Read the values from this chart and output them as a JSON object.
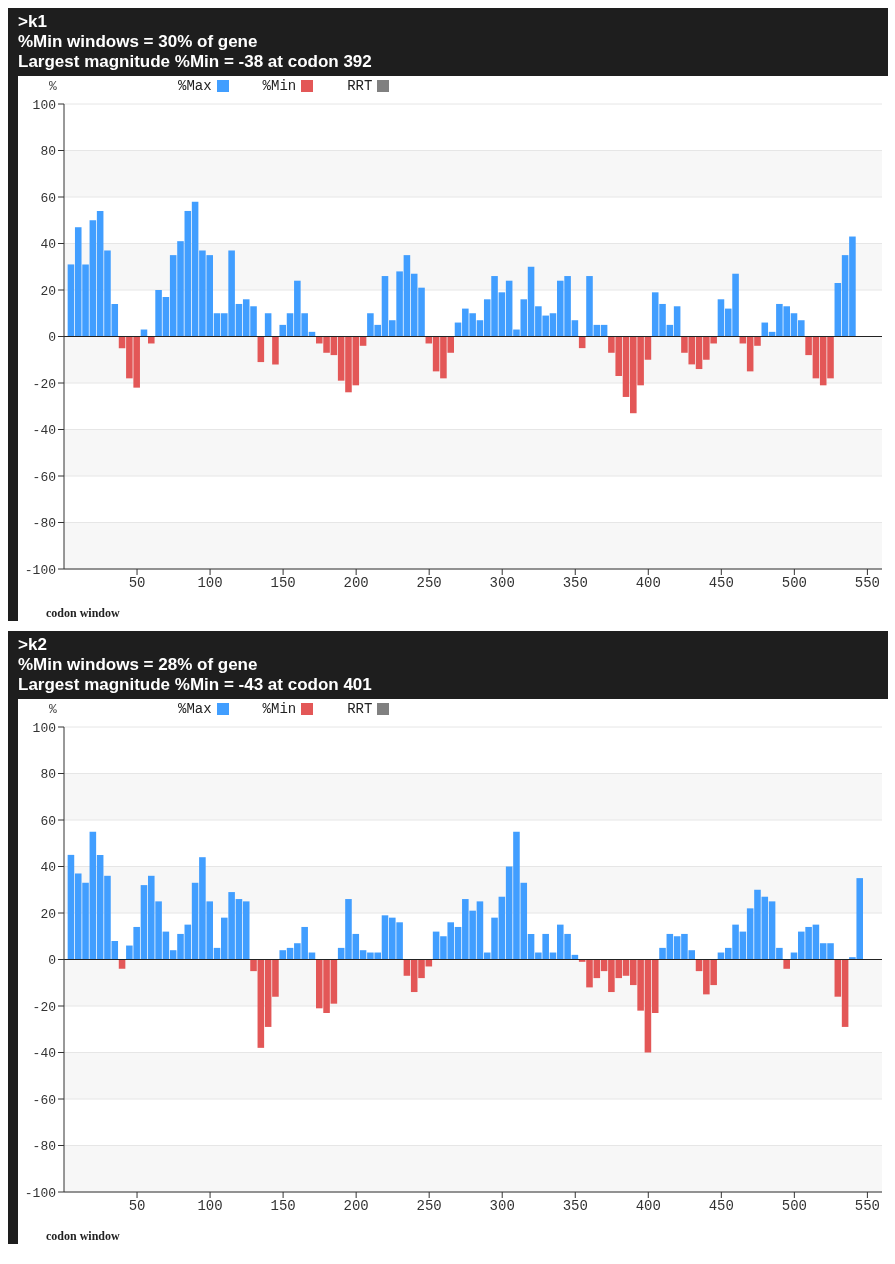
{
  "chart_data": [
    {
      "type": "bar",
      "title": ">k1",
      "subtitle": "%Min windows = 30% of gene",
      "annotations": [
        "Largest magnitude %Min = -38 at codon 392"
      ],
      "xlabel": "codon window",
      "ylabel": "%",
      "x": [
        5,
        10,
        15,
        20,
        25,
        30,
        35,
        40,
        45,
        50,
        55,
        60,
        65,
        70,
        75,
        80,
        85,
        90,
        95,
        100,
        105,
        110,
        115,
        120,
        125,
        130,
        135,
        140,
        145,
        150,
        155,
        160,
        165,
        170,
        175,
        180,
        185,
        190,
        195,
        200,
        205,
        210,
        215,
        220,
        225,
        230,
        235,
        240,
        245,
        250,
        255,
        260,
        265,
        270,
        275,
        280,
        285,
        290,
        295,
        300,
        305,
        310,
        315,
        320,
        325,
        330,
        335,
        340,
        345,
        350,
        355,
        360,
        365,
        370,
        375,
        380,
        385,
        390,
        395,
        400,
        405,
        410,
        415,
        420,
        425,
        430,
        435,
        440,
        445,
        450,
        455,
        460,
        465,
        470,
        475,
        480,
        485,
        490,
        495,
        500,
        505,
        510,
        515,
        520,
        525,
        530,
        535,
        540
      ],
      "series": [
        {
          "name": "%Max",
          "color": "#419eff",
          "values": [
            31,
            47,
            31,
            50,
            54,
            37,
            14,
            null,
            null,
            null,
            3,
            null,
            20,
            17,
            35,
            41,
            54,
            58,
            37,
            35,
            10,
            10,
            37,
            14,
            16,
            13,
            null,
            10,
            null,
            5,
            10,
            24,
            10,
            2,
            null,
            null,
            null,
            null,
            null,
            null,
            null,
            10,
            5,
            26,
            7,
            28,
            35,
            27,
            21,
            null,
            null,
            null,
            null,
            6,
            12,
            10,
            7,
            16,
            26,
            19,
            24,
            3,
            16,
            30,
            13,
            9,
            10,
            24,
            26,
            7,
            null,
            26,
            5,
            5,
            null,
            null,
            null,
            null,
            null,
            null,
            19,
            14,
            5,
            13,
            null,
            null,
            null,
            null,
            null,
            16,
            12,
            27,
            null,
            null,
            null,
            6,
            2,
            14,
            13,
            10,
            7,
            null,
            null,
            null,
            null,
            23,
            35,
            43
          ]
        },
        {
          "name": "%Min",
          "color": "#e35757",
          "values": [
            null,
            null,
            null,
            null,
            null,
            null,
            null,
            -5,
            -18,
            -22,
            null,
            -3,
            null,
            null,
            null,
            null,
            null,
            null,
            null,
            null,
            null,
            null,
            null,
            null,
            null,
            null,
            -11,
            null,
            -12,
            null,
            null,
            null,
            null,
            null,
            -3,
            -7,
            -8,
            -19,
            -24,
            -21,
            -4,
            null,
            null,
            null,
            null,
            null,
            null,
            null,
            null,
            -3,
            -15,
            -18,
            -7,
            null,
            null,
            null,
            null,
            null,
            null,
            null,
            null,
            null,
            null,
            null,
            null,
            null,
            null,
            null,
            null,
            null,
            -5,
            null,
            null,
            null,
            -7,
            -17,
            -26,
            -33,
            -21,
            -10,
            null,
            null,
            null,
            null,
            -7,
            -12,
            -14,
            -10,
            -3,
            null,
            null,
            null,
            -3,
            -15,
            -4,
            null,
            null,
            null,
            null,
            null,
            null,
            -8,
            -18,
            -21,
            -18,
            null,
            null,
            null
          ]
        },
        {
          "name": "RRT",
          "color": "#808080",
          "values": [
            null,
            null,
            null,
            null,
            null,
            null,
            null,
            null,
            null,
            null,
            null,
            null,
            null,
            null,
            null,
            null,
            null,
            null,
            null,
            null,
            null,
            null,
            null,
            null,
            null,
            null,
            null,
            null,
            null,
            null,
            null,
            null,
            null,
            null,
            null,
            null,
            null,
            null,
            null,
            null,
            null,
            null,
            null,
            null,
            null,
            null,
            null,
            null,
            null,
            null,
            null,
            null,
            null,
            null,
            null,
            null,
            null,
            null,
            null,
            null,
            null,
            null,
            null,
            null,
            null,
            null,
            null,
            null,
            null,
            null,
            null,
            null,
            null,
            null,
            null,
            null,
            null,
            null,
            null,
            null,
            null,
            null,
            null,
            null,
            null,
            null,
            null,
            null,
            null,
            null,
            null,
            null,
            null,
            null,
            null,
            null,
            null,
            null,
            null,
            null,
            null,
            null,
            null,
            null,
            null,
            null,
            null,
            null
          ]
        }
      ],
      "xlim": [
        0,
        560
      ],
      "xticks": [
        50,
        100,
        150,
        200,
        250,
        300,
        350,
        400,
        450,
        500,
        550
      ],
      "ylim": [
        -100,
        100
      ],
      "yticks": [
        -100,
        -80,
        -60,
        -40,
        -20,
        0,
        20,
        40,
        60,
        80,
        100
      ],
      "grid": "y",
      "legend": "top left",
      "ref_lines": [
        {
          "axis": "y",
          "value": 0,
          "color": "#222222"
        }
      ]
    },
    {
      "type": "bar",
      "title": ">k2",
      "subtitle": "%Min windows = 28% of gene",
      "annotations": [
        "Largest magnitude %Min = -43 at codon 401"
      ],
      "xlabel": "codon window",
      "ylabel": "%",
      "x": [
        5,
        10,
        15,
        20,
        25,
        30,
        35,
        40,
        45,
        50,
        55,
        60,
        65,
        70,
        75,
        80,
        85,
        90,
        95,
        100,
        105,
        110,
        115,
        120,
        125,
        130,
        135,
        140,
        145,
        150,
        155,
        160,
        165,
        170,
        175,
        180,
        185,
        190,
        195,
        200,
        205,
        210,
        215,
        220,
        225,
        230,
        235,
        240,
        245,
        250,
        255,
        260,
        265,
        270,
        275,
        280,
        285,
        290,
        295,
        300,
        305,
        310,
        315,
        320,
        325,
        330,
        335,
        340,
        345,
        350,
        355,
        360,
        365,
        370,
        375,
        380,
        385,
        390,
        395,
        400,
        405,
        410,
        415,
        420,
        425,
        430,
        435,
        440,
        445,
        450,
        455,
        460,
        465,
        470,
        475,
        480,
        485,
        490,
        495,
        500,
        505,
        510,
        515,
        520,
        525,
        530,
        535,
        540,
        545
      ],
      "series": [
        {
          "name": "%Max",
          "color": "#419eff",
          "values": [
            45,
            37,
            33,
            55,
            45,
            36,
            8,
            null,
            6,
            14,
            32,
            36,
            25,
            12,
            4,
            11,
            15,
            33,
            44,
            25,
            5,
            18,
            29,
            26,
            25,
            null,
            null,
            null,
            null,
            4,
            5,
            7,
            14,
            3,
            null,
            null,
            null,
            5,
            26,
            11,
            4,
            3,
            3,
            19,
            18,
            16,
            null,
            null,
            null,
            null,
            12,
            10,
            16,
            14,
            26,
            21,
            25,
            3,
            18,
            27,
            40,
            55,
            33,
            11,
            3,
            11,
            3,
            15,
            11,
            2,
            null,
            null,
            null,
            null,
            null,
            null,
            null,
            null,
            null,
            null,
            null,
            5,
            11,
            10,
            11,
            4,
            null,
            null,
            null,
            3,
            5,
            15,
            12,
            22,
            30,
            27,
            25,
            5,
            null,
            3,
            12,
            14,
            15,
            7,
            7,
            null,
            null,
            1,
            35
          ]
        },
        {
          "name": "%Min",
          "color": "#e35757",
          "values": [
            null,
            null,
            null,
            null,
            null,
            null,
            null,
            -4,
            null,
            null,
            null,
            null,
            null,
            null,
            null,
            null,
            null,
            null,
            null,
            null,
            null,
            null,
            null,
            null,
            null,
            -5,
            -38,
            -29,
            -16,
            null,
            null,
            null,
            null,
            null,
            -21,
            -23,
            -19,
            null,
            null,
            null,
            null,
            null,
            null,
            null,
            null,
            null,
            -7,
            -14,
            -8,
            -3,
            null,
            null,
            null,
            null,
            null,
            null,
            null,
            null,
            null,
            null,
            null,
            null,
            null,
            null,
            null,
            null,
            null,
            null,
            null,
            null,
            -1,
            -12,
            -8,
            -5,
            -14,
            -8,
            -7,
            -11,
            -22,
            -40,
            -23,
            null,
            null,
            null,
            null,
            null,
            -5,
            -15,
            -11,
            null,
            null,
            null,
            null,
            null,
            null,
            null,
            null,
            null,
            -4,
            null,
            null,
            null,
            null,
            null,
            null,
            -16,
            -29,
            null,
            null
          ]
        },
        {
          "name": "RRT",
          "color": "#808080",
          "values": [
            null,
            null,
            null,
            null,
            null,
            null,
            null,
            null,
            null,
            null,
            null,
            null,
            null,
            null,
            null,
            null,
            null,
            null,
            null,
            null,
            null,
            null,
            null,
            null,
            null,
            null,
            null,
            null,
            null,
            null,
            null,
            null,
            null,
            null,
            null,
            null,
            null,
            null,
            null,
            null,
            null,
            null,
            null,
            null,
            null,
            null,
            null,
            null,
            null,
            null,
            null,
            null,
            null,
            null,
            null,
            null,
            null,
            null,
            null,
            null,
            null,
            null,
            null,
            null,
            null,
            null,
            null,
            null,
            null,
            null,
            null,
            null,
            null,
            null,
            null,
            null,
            null,
            null,
            null,
            null,
            null,
            null,
            null,
            null,
            null,
            null,
            null,
            null,
            null,
            null,
            null,
            null,
            null,
            null,
            null,
            null,
            null,
            null,
            null,
            null,
            null,
            null,
            null,
            null,
            null,
            null,
            null,
            null,
            null
          ]
        }
      ],
      "xlim": [
        0,
        560
      ],
      "xticks": [
        50,
        100,
        150,
        200,
        250,
        300,
        350,
        400,
        450,
        500,
        550
      ],
      "ylim": [
        -100,
        100
      ],
      "yticks": [
        -100,
        -80,
        -60,
        -40,
        -20,
        0,
        20,
        40,
        60,
        80,
        100
      ],
      "grid": "y",
      "legend": "top left",
      "ref_lines": [
        {
          "axis": "y",
          "value": 0,
          "color": "#222222"
        }
      ]
    }
  ]
}
